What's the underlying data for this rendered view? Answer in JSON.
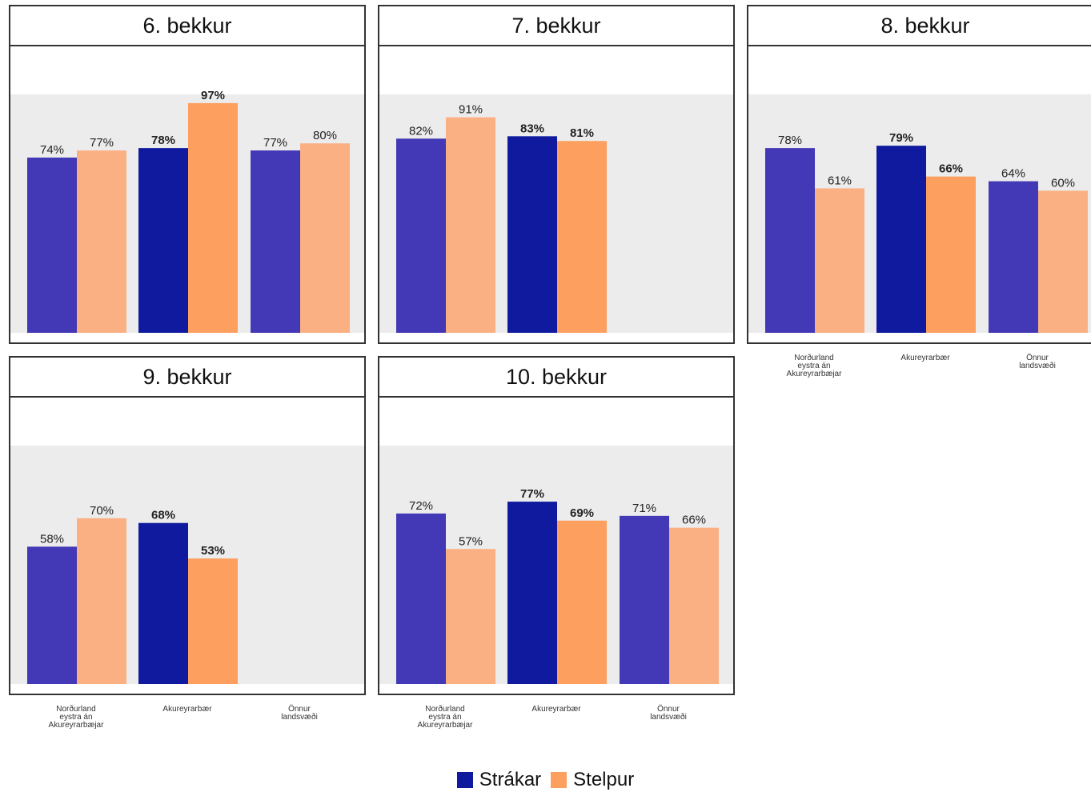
{
  "colors": {
    "strakar": "#4338b5",
    "strakar_akureyri": "#0f1a9e",
    "stelpur": "#fbb083",
    "stelpur_akureyri": "#fd9f5e",
    "panel_background": "#ececec"
  },
  "chart_data": {
    "type": "bar",
    "categories": [
      "Norðurland\neystra án\nAkureyrarbæjar",
      "Akureyrarbær",
      "Önnur\nlandsvæði"
    ],
    "series_names": [
      "Strákar",
      "Stelpur"
    ],
    "ylim": [
      0,
      100
    ],
    "grid": false,
    "legend_position": "bottom",
    "panels": [
      {
        "title": "6. bekkur",
        "series": [
          {
            "name": "Strákar",
            "values": [
              74,
              78,
              77
            ],
            "labels": [
              "74%",
              "78%",
              "77%"
            ]
          },
          {
            "name": "Stelpur",
            "values": [
              77,
              97,
              80
            ],
            "labels": [
              "77%",
              "97%",
              "80%"
            ]
          }
        ]
      },
      {
        "title": "7. bekkur",
        "series": [
          {
            "name": "Strákar",
            "values": [
              82,
              83,
              null
            ],
            "labels": [
              "82%",
              "83%",
              null
            ]
          },
          {
            "name": "Stelpur",
            "values": [
              91,
              81,
              null
            ],
            "labels": [
              "91%",
              "81%",
              null
            ]
          }
        ]
      },
      {
        "title": "8. bekkur",
        "series": [
          {
            "name": "Strákar",
            "values": [
              78,
              79,
              64
            ],
            "labels": [
              "78%",
              "79%",
              "64%"
            ]
          },
          {
            "name": "Stelpur",
            "values": [
              61,
              66,
              60
            ],
            "labels": [
              "61%",
              "66%",
              "60%"
            ]
          }
        ]
      },
      {
        "title": "9. bekkur",
        "series": [
          {
            "name": "Strákar",
            "values": [
              58,
              68,
              null
            ],
            "labels": [
              "58%",
              "68%",
              null
            ]
          },
          {
            "name": "Stelpur",
            "values": [
              70,
              53,
              null
            ],
            "labels": [
              "70%",
              "53%",
              null
            ]
          }
        ]
      },
      {
        "title": "10. bekkur",
        "series": [
          {
            "name": "Strákar",
            "values": [
              72,
              77,
              71
            ],
            "labels": [
              "72%",
              "77%",
              "71%"
            ]
          },
          {
            "name": "Stelpur",
            "values": [
              57,
              69,
              66
            ],
            "labels": [
              "57%",
              "69%",
              "66%"
            ]
          }
        ]
      }
    ]
  }
}
